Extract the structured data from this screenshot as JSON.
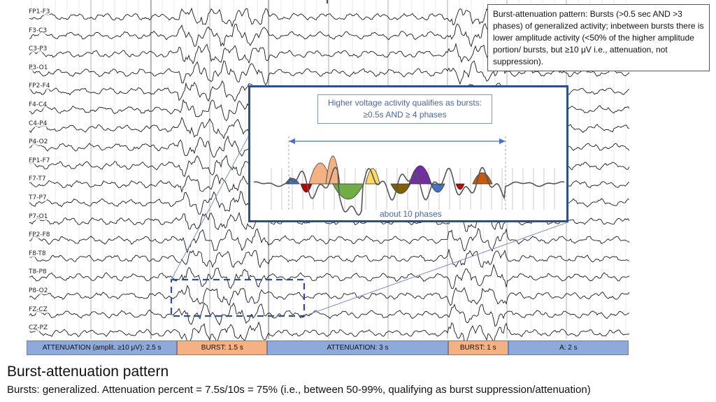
{
  "channels": [
    "FP1-F3",
    "F3-C3",
    "C3-P3",
    "P3-O1",
    "FP2-F4",
    "F4-C4",
    "C4-P4",
    "P4-O2",
    "FP1-F7",
    "F7-T7",
    "T7-P7",
    "P7-O1",
    "FP2-F8",
    "F8-T8",
    "T8-P8",
    "P8-O2",
    "FZ-CZ",
    "CZ-PZ"
  ],
  "callout": {
    "text": "Burst-attenuation pattern: Bursts (>0.5 sec AND >3 phases) of generalized activity; inbetween bursts there is lower amplitude activity (<50% of the higher amplitude portion/ bursts, but ≥10 μV i.e., attenuation, not suppression)."
  },
  "inset": {
    "note": "Higher voltage activity qualifies as bursts: ≥0.5s AND ≥ 4 phases",
    "phases_label": "about 10 phases",
    "phase_colors": [
      "#4472c4",
      "#c00000",
      "#f4b183",
      "#f4b183",
      "#70ad47",
      "#ffd966",
      "#7f6000",
      "#7030a0",
      "#4472c4",
      "#c00000",
      "#c55a11"
    ]
  },
  "timeline": [
    {
      "label": "ATTENUATION (amplit. ≥10 μV): 2.5 s",
      "kind": "attenuation",
      "seconds": 2.5
    },
    {
      "label": "BURST: 1.5 s",
      "kind": "burst",
      "seconds": 1.5
    },
    {
      "label": "ATTENUATION: 3 s",
      "kind": "attenuation",
      "seconds": 3
    },
    {
      "label": "BURST: 1 s",
      "kind": "burst",
      "seconds": 1
    },
    {
      "label": "A: 2 s",
      "kind": "attenuation",
      "seconds": 2
    }
  ],
  "title": "Burst-attenuation pattern",
  "subtitle": "Bursts: generalized. Attenuation percent = 7.5s/10s = 75% (i.e., between 50-99%, qualifying as burst suppression/attenuation)",
  "colors": {
    "attenuation": "#8eaadb",
    "burst": "#f4b183",
    "inset_border": "#2e4f8f",
    "accent_text": "#4a66a8"
  }
}
